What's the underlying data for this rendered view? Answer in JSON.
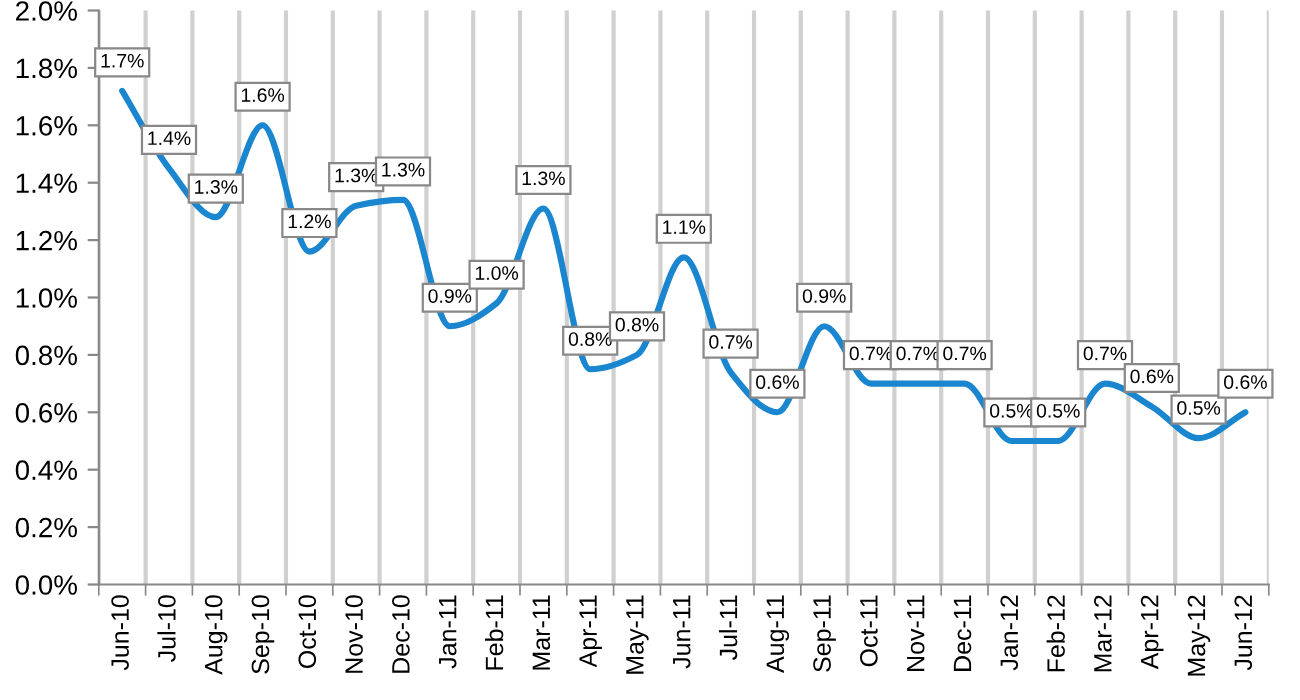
{
  "chart_data": {
    "type": "line",
    "categories": [
      "Jun-10",
      "Jul-10",
      "Aug-10",
      "Sep-10",
      "Oct-10",
      "Nov-10",
      "Dec-10",
      "Jan-11",
      "Feb-11",
      "Mar-11",
      "Apr-11",
      "May-11",
      "Jun-11",
      "Jul-11",
      "Aug-11",
      "Sep-11",
      "Oct-11",
      "Nov-11",
      "Dec-11",
      "Jan-12",
      "Feb-12",
      "Mar-12",
      "Apr-12",
      "May-12",
      "Jun-12"
    ],
    "series": [
      {
        "color": "#1a86d0",
        "values": [
          1.72,
          1.45,
          1.28,
          1.6,
          1.16,
          1.32,
          1.34,
          0.9,
          0.98,
          1.31,
          0.75,
          0.8,
          1.14,
          0.74,
          0.6,
          0.9,
          0.7,
          0.7,
          0.7,
          0.5,
          0.5,
          0.7,
          0.62,
          0.51,
          0.6
        ],
        "value_labels": [
          "1.7%",
          "1.4%",
          "1.3%",
          "1.6%",
          "1.2%",
          "1.3%",
          "1.3%",
          "0.9%",
          "1.0%",
          "1.3%",
          "0.8%",
          "0.8%",
          "1.1%",
          "0.7%",
          "0.6%",
          "0.9%",
          "0.7%",
          "0.7%",
          "0.7%",
          "0.5%",
          "0.5%",
          "0.7%",
          "0.6%",
          "0.5%",
          "0.6%"
        ]
      }
    ],
    "ylim": [
      0,
      2.0
    ],
    "yticks": [
      {
        "value": 0,
        "label": "0.0%"
      },
      {
        "value": 0.2,
        "label": "0.2%"
      },
      {
        "value": 0.4,
        "label": "0.4%"
      },
      {
        "value": 0.6,
        "label": "0.6%"
      },
      {
        "value": 0.8,
        "label": "0.8%"
      },
      {
        "value": 1.0,
        "label": "1.0%"
      },
      {
        "value": 1.2,
        "label": "1.2%"
      },
      {
        "value": 1.4,
        "label": "1.4%"
      },
      {
        "value": 1.6,
        "label": "1.6%"
      },
      {
        "value": 1.8,
        "label": "1.8%"
      },
      {
        "value": 2.0,
        "label": "2.0%"
      }
    ],
    "grid": "x",
    "legend": false,
    "marker": "none",
    "line_style": "solid"
  }
}
